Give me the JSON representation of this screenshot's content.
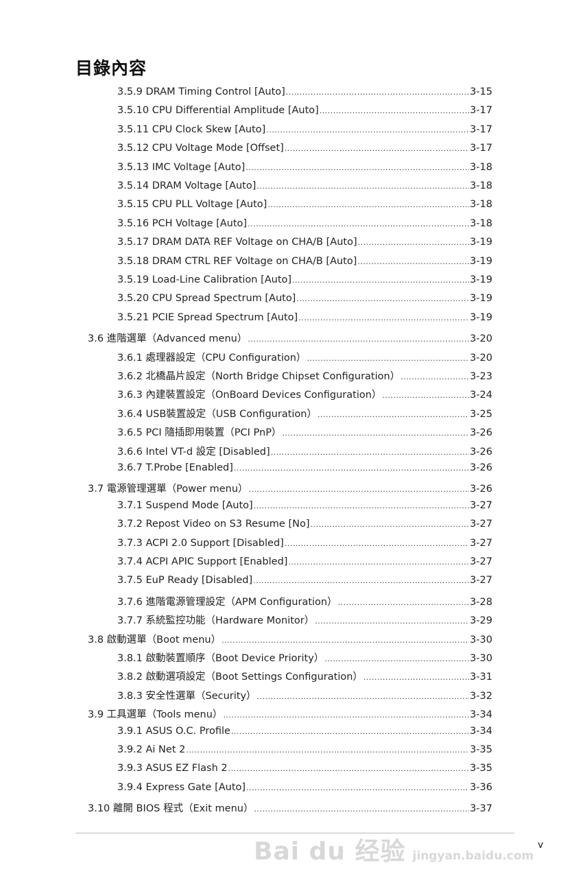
{
  "title": "目錄內容",
  "entries": [
    {
      "level": 2,
      "label": "3.5.9 DRAM Timing Control [Auto]",
      "page": "3-15"
    },
    {
      "level": 2,
      "label": "3.5.10 CPU Differential Amplitude [Auto]",
      "page": "3-17"
    },
    {
      "level": 2,
      "label": "3.5.11 CPU Clock Skew [Auto]",
      "page": "3-17"
    },
    {
      "level": 2,
      "label": "3.5.12 CPU Voltage Mode [Offset]",
      "page": "3-17"
    },
    {
      "level": 2,
      "label": "3.5.13 IMC Voltage [Auto]",
      "page": "3-18"
    },
    {
      "level": 2,
      "label": "3.5.14 DRAM Voltage [Auto]",
      "page": "3-18"
    },
    {
      "level": 2,
      "label": "3.5.15 CPU PLL Voltage [Auto]",
      "page": "3-18"
    },
    {
      "level": 2,
      "label": "3.5.16 PCH Voltage [Auto]",
      "page": "3-18"
    },
    {
      "level": 2,
      "label": "3.5.17 DRAM DATA REF Voltage on CHA/B [Auto]",
      "page": "3-19"
    },
    {
      "level": 2,
      "label": "3.5.18 DRAM CTRL REF Voltage on CHA/B [Auto]",
      "page": "3-19"
    },
    {
      "level": 2,
      "label": "3.5.19 Load-Line Calibration [Auto]",
      "page": "3-19"
    },
    {
      "level": 2,
      "label": "3.5.20 CPU Spread Spectrum [Auto]",
      "page": "3-19"
    },
    {
      "level": 2,
      "label": "3.5.21 PCIE Spread Spectrum [Auto]",
      "page": "3-19"
    },
    {
      "level": 1,
      "label": "3.6 進階選單（Advanced menu）",
      "page": "3-20"
    },
    {
      "level": 2,
      "label": "3.6.1 處理器設定（CPU Configuration）",
      "page": "3-20"
    },
    {
      "level": 2,
      "label": "3.6.2 北橋晶片設定（North Bridge Chipset Configuration）",
      "page": "3-23"
    },
    {
      "level": 2,
      "label": "3.6.3 內建裝置設定（OnBoard Devices Configuration）",
      "page": "3-24"
    },
    {
      "level": 2,
      "label": "3.6.4 USB裝置設定（USB Configuration）",
      "page": "3-25"
    },
    {
      "level": 2,
      "label": "3.6.5 PCI 隨插即用裝置（PCI PnP）",
      "page": "3-26"
    },
    {
      "level": 2,
      "label": "3.6.6 Intel VT-d 設定 [Disabled]",
      "page": "3-26"
    },
    {
      "level": 2,
      "label": "3.6.7 T.Probe [Enabled]",
      "page": "3-26"
    },
    {
      "level": 1,
      "label": "3.7 電源管理選單（Power menu）",
      "page": "3-26"
    },
    {
      "level": 2,
      "label": "3.7.1 Suspend Mode [Auto]",
      "page": "3-27"
    },
    {
      "level": 2,
      "label": "3.7.2 Repost Video on S3 Resume [No]",
      "page": "3-27"
    },
    {
      "level": 2,
      "label": "3.7.3 ACPI 2.0 Support [Disabled]",
      "page": "3-27"
    },
    {
      "level": 2,
      "label": "3.7.4 ACPI APIC Support [Enabled]",
      "page": "3-27"
    },
    {
      "level": 2,
      "label": "3.7.5 EuP Ready [Disabled]",
      "page": "3-27"
    },
    {
      "level": 2,
      "label": "3.7.6 進階電源管理設定（APM Configuration）",
      "page": "3-28"
    },
    {
      "level": 2,
      "label": "3.7.7 系統監控功能（Hardware Monitor）",
      "page": "3-29"
    },
    {
      "level": 1,
      "label": "3.8 啟動選單（Boot menu）",
      "page": "3-30"
    },
    {
      "level": 2,
      "label": "3.8.1 啟動裝置順序（Boot Device Priority）",
      "page": "3-30"
    },
    {
      "level": 2,
      "label": "3.8.2 啟動選項設定（Boot Settings Configuration）",
      "page": "3-31"
    },
    {
      "level": 2,
      "label": "3.8.3 安全性選單（Security）",
      "page": "3-32"
    },
    {
      "level": 1,
      "label": "3.9 工具選單（Tools menu）",
      "page": "3-34"
    },
    {
      "level": 2,
      "label": "3.9.1 ASUS O.C. Profile",
      "page": "3-34"
    },
    {
      "level": 2,
      "label": "3.9.2 Ai Net 2",
      "page": "3-35"
    },
    {
      "level": 2,
      "label": "3.9.3 ASUS EZ Flash 2",
      "page": "3-35"
    },
    {
      "level": 2,
      "label": "3.9.4 Express Gate [Auto]",
      "page": "3-36"
    },
    {
      "level": 1,
      "label": "3.10 離開 BIOS 程式（Exit menu）",
      "page": "3-37"
    }
  ],
  "footer": {
    "page_number": "v"
  },
  "watermark": {
    "logo_text": "Baidu经验",
    "url_text": "jingyan.baidu.com"
  }
}
